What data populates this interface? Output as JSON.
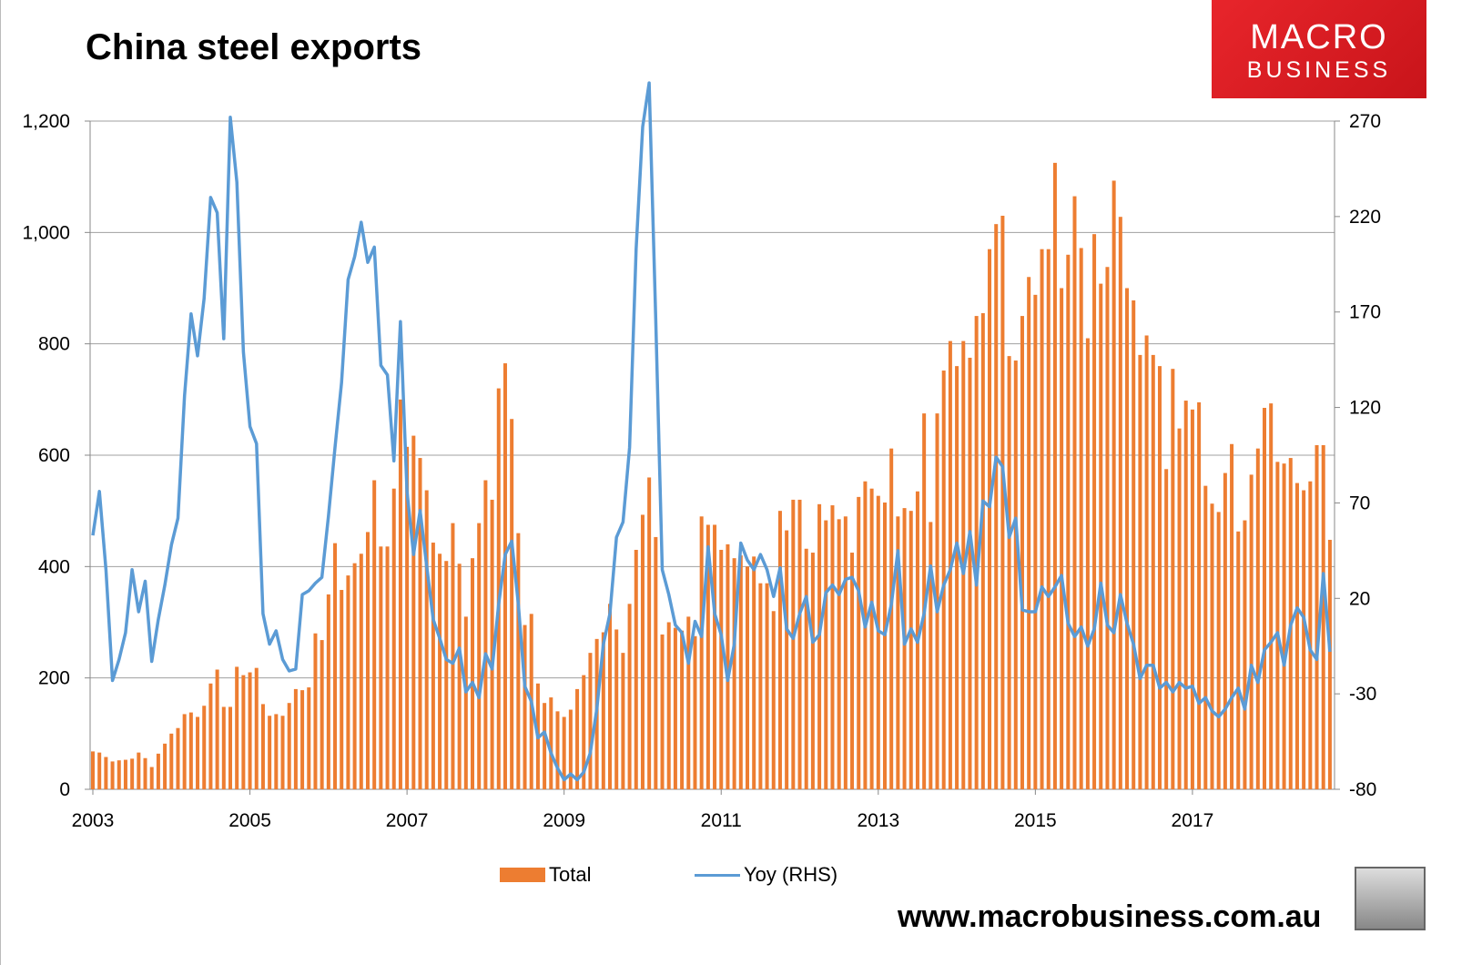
{
  "chart_data": {
    "type": "bar+line",
    "title": "China steel exports",
    "x_start": "2003-01",
    "frequency": "monthly",
    "x_tick_labels": [
      "2003",
      "2005",
      "2007",
      "2009",
      "2011",
      "2013",
      "2015",
      "2017"
    ],
    "y_left": {
      "ylim": [
        0,
        1200
      ],
      "ticks": [
        "0",
        "200",
        "400",
        "600",
        "800",
        "1,000",
        "1,200"
      ]
    },
    "y_right": {
      "ylim": [
        -80,
        270
      ],
      "ticks": [
        "-80",
        "-30",
        "20",
        "70",
        "120",
        "170",
        "220",
        "270"
      ]
    },
    "grid": true,
    "legend_position": "bottom",
    "series": [
      {
        "name": "Total",
        "type": "bar",
        "axis": "left",
        "color": "#ED7D31",
        "values": [
          68,
          66,
          58,
          50,
          52,
          53,
          55,
          66,
          56,
          40,
          64,
          82,
          100,
          110,
          135,
          138,
          130,
          150,
          190,
          215,
          148,
          148,
          220,
          205,
          210,
          218,
          153,
          132,
          135,
          132,
          155,
          180,
          178,
          183,
          280,
          268,
          350,
          442,
          358,
          384,
          406,
          423,
          462,
          555,
          436,
          436,
          540,
          700,
          615,
          635,
          595,
          537,
          443,
          423,
          410,
          478,
          405,
          310,
          415,
          478,
          555,
          520,
          720,
          765,
          665,
          460,
          295,
          315,
          190,
          155,
          165,
          140,
          130,
          143,
          180,
          205,
          245,
          270,
          282,
          333,
          287,
          245,
          333,
          430,
          493,
          560,
          453,
          278,
          300,
          290,
          285,
          310,
          275,
          490,
          475,
          475,
          430,
          440,
          415,
          420,
          400,
          418,
          370,
          370,
          320,
          500,
          465,
          520,
          520,
          432,
          425,
          512,
          483,
          510,
          485,
          490,
          425,
          525,
          553,
          540,
          527,
          515,
          612,
          490,
          505,
          500,
          535,
          675,
          480,
          675,
          752,
          805,
          760,
          805,
          775,
          850,
          855,
          970,
          1015,
          1030,
          778,
          770,
          850,
          920,
          888,
          970,
          970,
          1125,
          900,
          960,
          1065,
          972,
          810,
          997,
          908,
          938,
          1093,
          1028,
          900,
          878,
          780,
          815,
          780,
          760,
          575,
          755,
          648,
          698,
          682,
          695,
          545,
          513,
          498,
          568,
          620,
          463,
          483,
          565,
          612,
          685,
          693,
          588,
          585,
          595,
          550,
          537,
          553,
          618,
          618,
          448
        ]
      },
      {
        "name": "Yoy (RHS)",
        "type": "line",
        "axis": "right",
        "color": "#5B9BD5",
        "values": [
          53,
          76,
          35,
          -23,
          -12,
          2,
          35,
          13,
          29,
          -13,
          9,
          27,
          48,
          62,
          126,
          169,
          147,
          177,
          230,
          222,
          156,
          272,
          238,
          149,
          110,
          101,
          12,
          -4,
          3,
          -12,
          -18,
          -17,
          22,
          24,
          28,
          31,
          63,
          99,
          133,
          187,
          199,
          217,
          196,
          204,
          142,
          137,
          92,
          165,
          76,
          43,
          66,
          37,
          9,
          -1,
          -12,
          -14,
          -6,
          -29,
          -24,
          -32,
          -9,
          -17,
          17,
          43,
          50,
          17,
          -26,
          -34,
          -53,
          -50,
          -61,
          -69,
          -75,
          -72,
          -75,
          -71,
          -61,
          -38,
          -4,
          12,
          52,
          60,
          99,
          203,
          267,
          290,
          167,
          35,
          22,
          6,
          2,
          -14,
          8,
          0,
          47,
          12,
          1,
          -23,
          -4,
          49,
          40,
          35,
          43,
          35,
          21,
          36,
          4,
          -1,
          12,
          21,
          -3,
          1,
          23,
          27,
          22,
          30,
          31,
          24,
          5,
          18,
          3,
          1,
          17,
          45,
          -4,
          4,
          -3,
          12,
          37,
          13,
          27,
          35,
          49,
          33,
          55,
          27,
          71,
          68,
          94,
          89,
          52,
          62,
          14,
          13,
          13,
          26,
          21,
          26,
          32,
          7,
          0,
          5,
          -5,
          4,
          28,
          6,
          2,
          22,
          7,
          -4,
          -22,
          -15,
          -15,
          -27,
          -24,
          -29,
          -24,
          -27,
          -26,
          -35,
          -32,
          -39,
          -42,
          -38,
          -32,
          -27,
          -38,
          -15,
          -24,
          -7,
          -3,
          2,
          -15,
          6,
          15,
          10,
          -7,
          -12,
          33,
          -8
        ]
      }
    ]
  },
  "legend": {
    "total": "Total",
    "yoy": "Yoy (RHS)"
  },
  "logo": {
    "line1": "MACRO",
    "line2": "BUSINESS"
  },
  "footer": "www.macrobusiness.com.au"
}
